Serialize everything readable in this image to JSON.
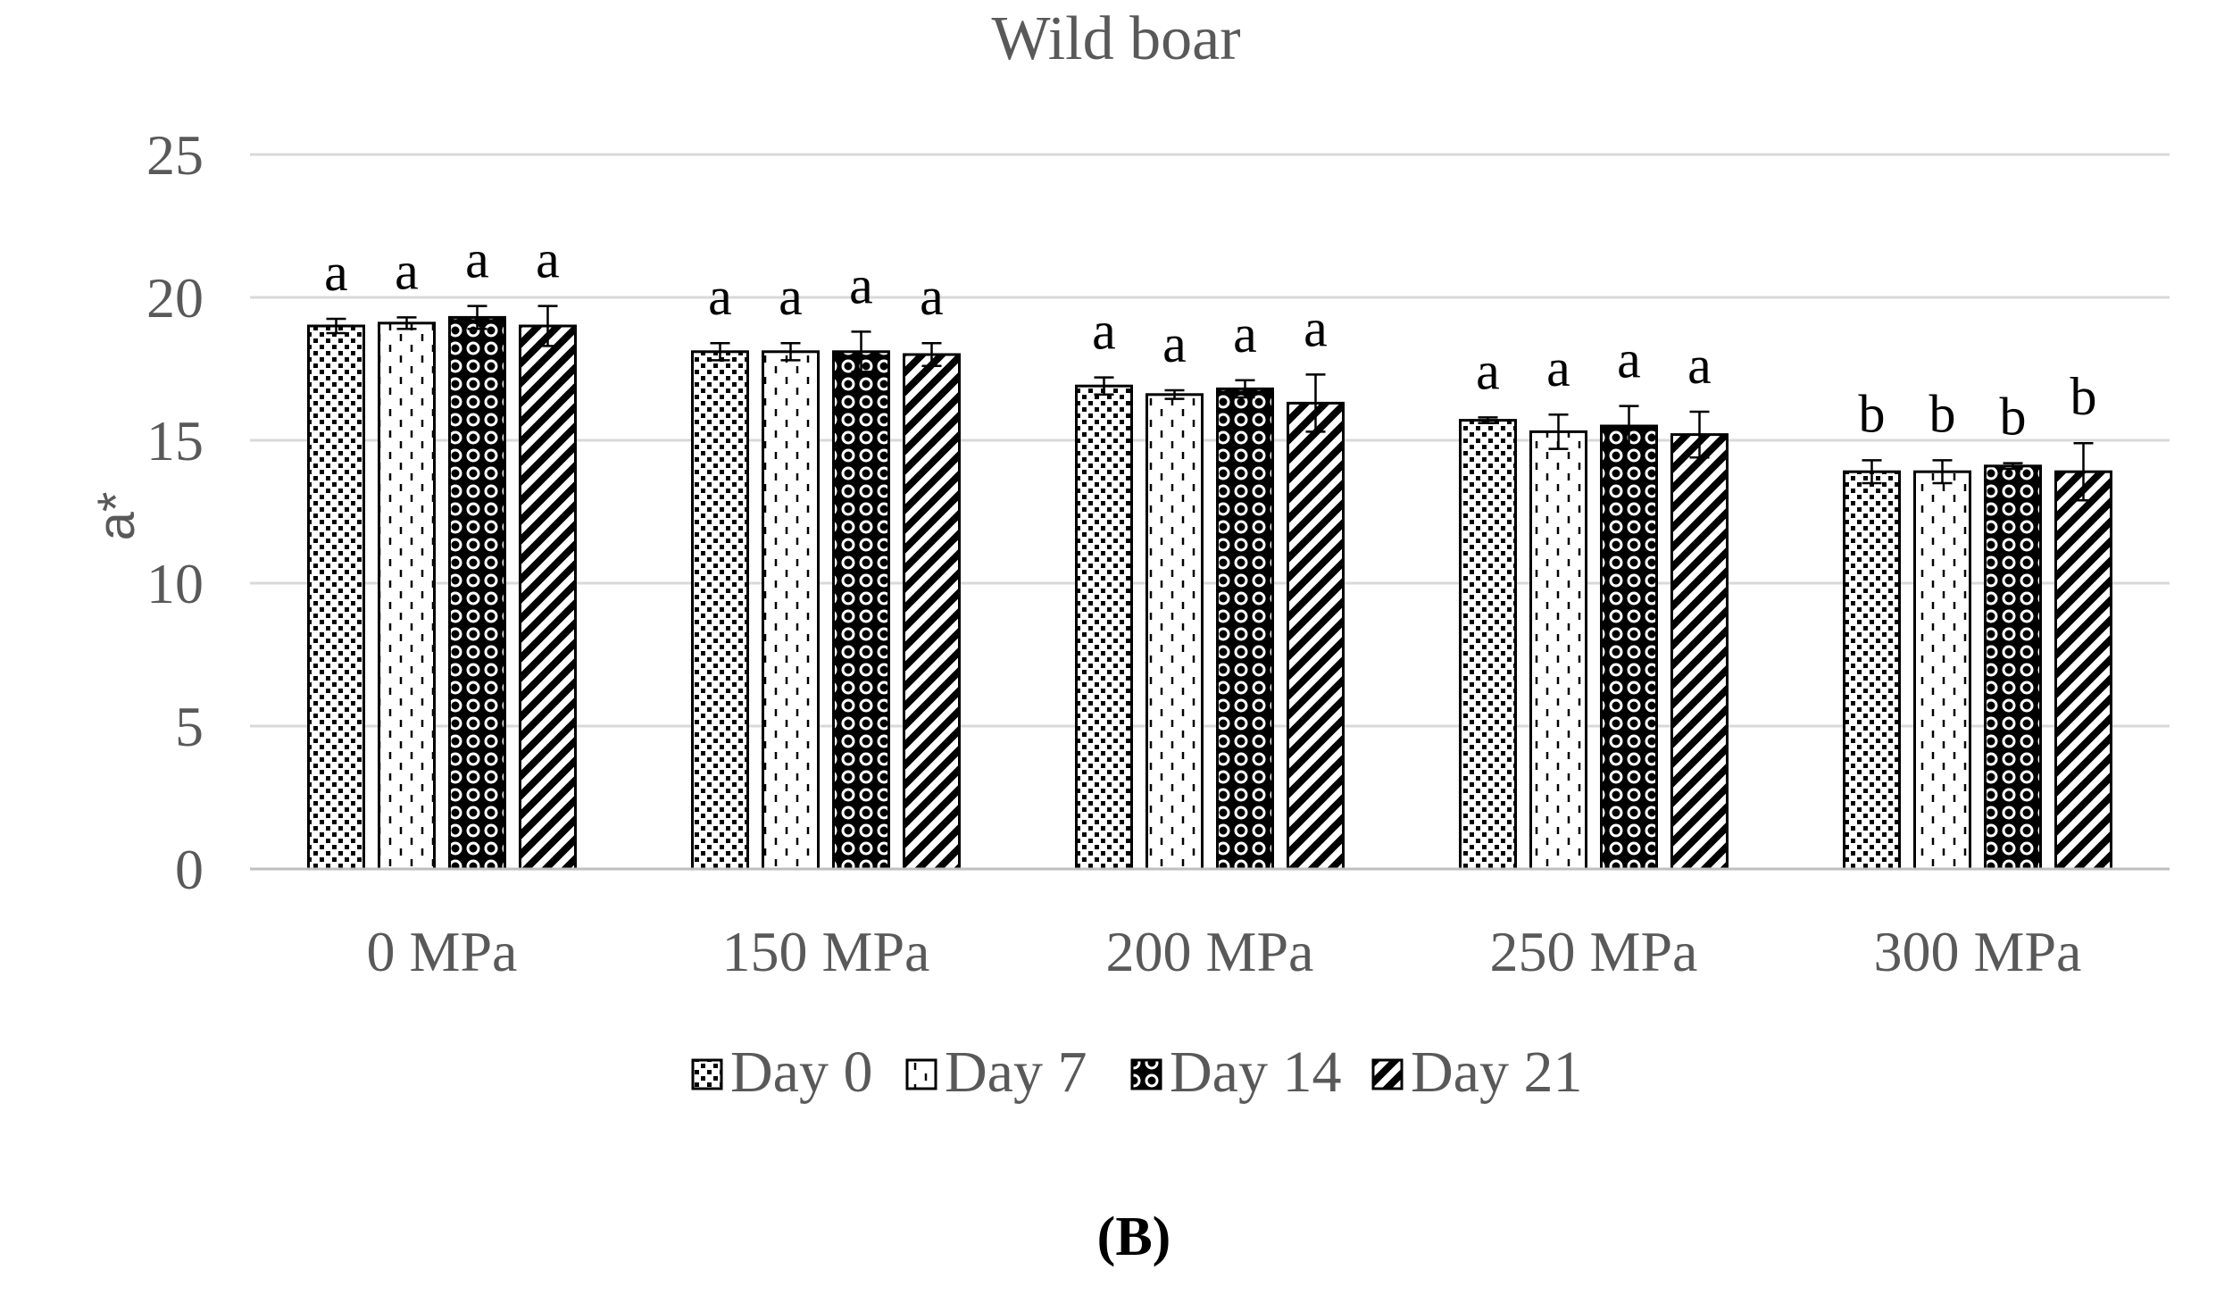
{
  "chart_data": {
    "type": "bar",
    "title": "Wild boar",
    "xlabel": "",
    "ylabel": "a*",
    "ylim": [
      0,
      25
    ],
    "yticks": [
      0,
      5,
      10,
      15,
      20,
      25
    ],
    "grid": true,
    "legend_position": "bottom",
    "categories": [
      "0 MPa",
      "150 MPa",
      "200 MPa",
      "250 MPa",
      "300 MPa"
    ],
    "series": [
      {
        "name": "Day 0",
        "pattern": "dots",
        "values": [
          19.0,
          18.1,
          16.9,
          15.7,
          13.9
        ],
        "errors": [
          0.25,
          0.3,
          0.3,
          0.1,
          0.4
        ],
        "letters": [
          "a",
          "a",
          "a",
          "a",
          "b"
        ]
      },
      {
        "name": "Day 7",
        "pattern": "dashes",
        "values": [
          19.1,
          18.1,
          16.6,
          15.3,
          13.9
        ],
        "errors": [
          0.2,
          0.3,
          0.15,
          0.6,
          0.4
        ],
        "letters": [
          "a",
          "a",
          "a",
          "a",
          "b"
        ]
      },
      {
        "name": "Day 14",
        "pattern": "circles",
        "values": [
          19.3,
          18.1,
          16.8,
          15.5,
          14.1
        ],
        "errors": [
          0.4,
          0.7,
          0.3,
          0.7,
          0.1
        ],
        "letters": [
          "a",
          "a",
          "a",
          "a",
          "b"
        ]
      },
      {
        "name": "Day 21",
        "pattern": "diagonal",
        "values": [
          19.0,
          18.0,
          16.3,
          15.2,
          13.9
        ],
        "errors": [
          0.7,
          0.4,
          1.0,
          0.8,
          1.0
        ],
        "letters": [
          "a",
          "a",
          "a",
          "a",
          "b"
        ]
      }
    ],
    "panel_label": "(B)"
  },
  "colors": {
    "bar_stroke": "#000000",
    "grid": "#d9d9d9",
    "axis": "#bfbfbf",
    "text": "#595959"
  }
}
